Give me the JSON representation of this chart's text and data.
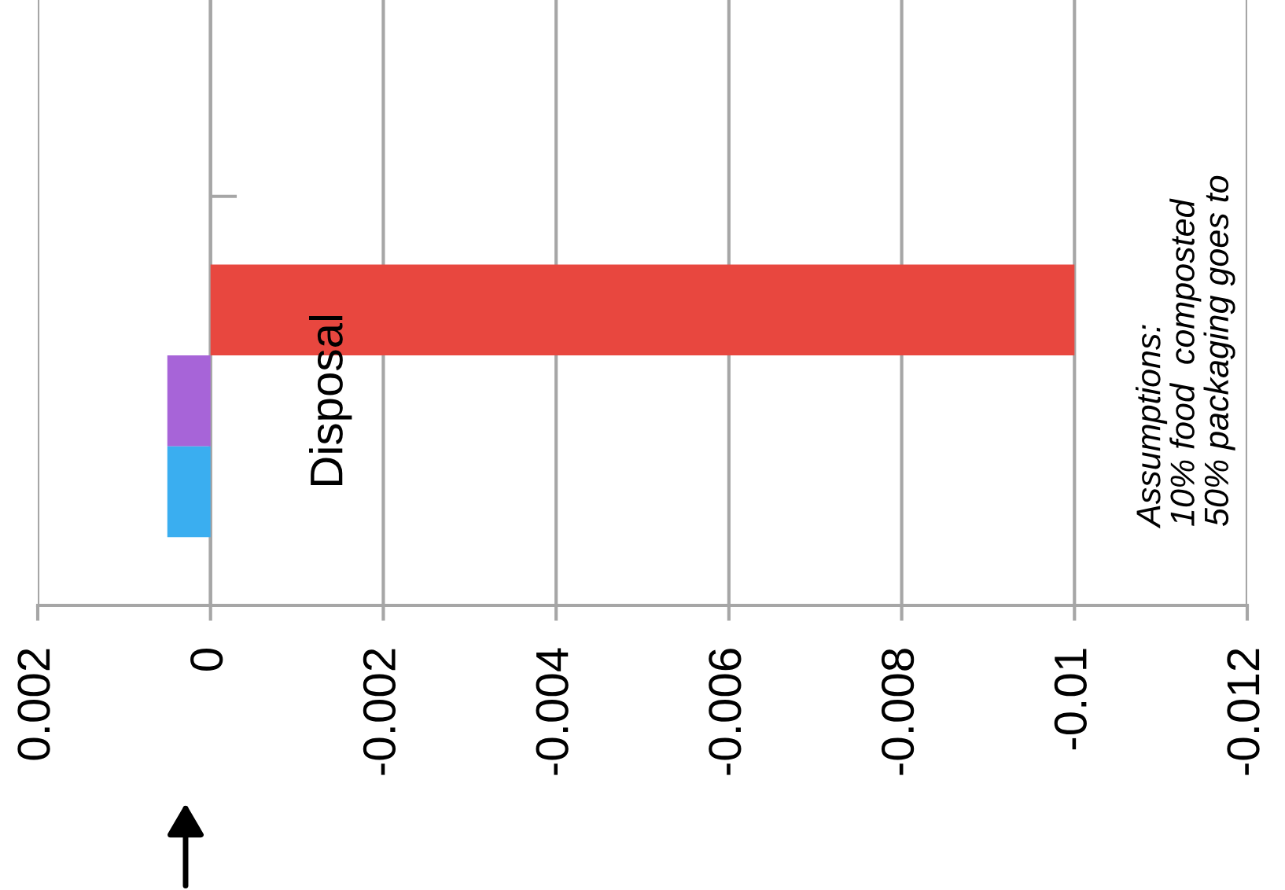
{
  "chart_data": {
    "type": "bar",
    "orientation": "horizontal",
    "categories": [
      "Disposal"
    ],
    "series": [
      {
        "color": "#e8473f",
        "values": [
          -0.01
        ]
      },
      {
        "color": "#a764d8",
        "values": [
          0.0005
        ]
      },
      {
        "color": "#3aaef0",
        "values": [
          0.0005
        ]
      }
    ],
    "xlim": [
      0.002,
      -0.012
    ],
    "xticks": [
      0.002,
      0,
      -0.002,
      -0.004,
      -0.006,
      -0.008,
      -0.01,
      -0.012
    ],
    "grid": "x",
    "annotations": [
      "Assumptions:\n10% food  composted\n50% packaging goes to"
    ]
  }
}
